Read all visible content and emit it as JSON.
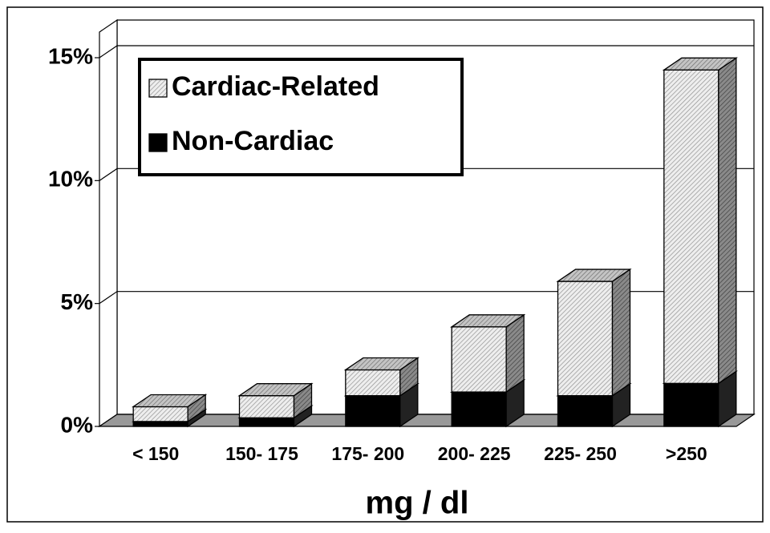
{
  "chart_data": {
    "type": "stacked_bar_3d",
    "xlabel": "mg / dl",
    "categories": [
      "< 150",
      "150- 175",
      "175- 200",
      "200- 225",
      "225- 250",
      ">250"
    ],
    "series": [
      {
        "name": "Non-Cardiac",
        "color": "#000000",
        "values": [
          0.2,
          0.35,
          1.25,
          1.4,
          1.25,
          1.75
        ]
      },
      {
        "name": "Cardiac-Related",
        "color": "#d4d4d4",
        "values": [
          0.6,
          0.9,
          1.05,
          2.65,
          4.65,
          12.75
        ]
      }
    ],
    "ylim": [
      0,
      15
    ],
    "yticks": [
      {
        "value": 0,
        "label": "0%"
      },
      {
        "value": 5,
        "label": "5%"
      },
      {
        "value": 10,
        "label": "10%"
      },
      {
        "value": 15,
        "label": "15%"
      }
    ],
    "grid": true,
    "legend": "upper left"
  }
}
